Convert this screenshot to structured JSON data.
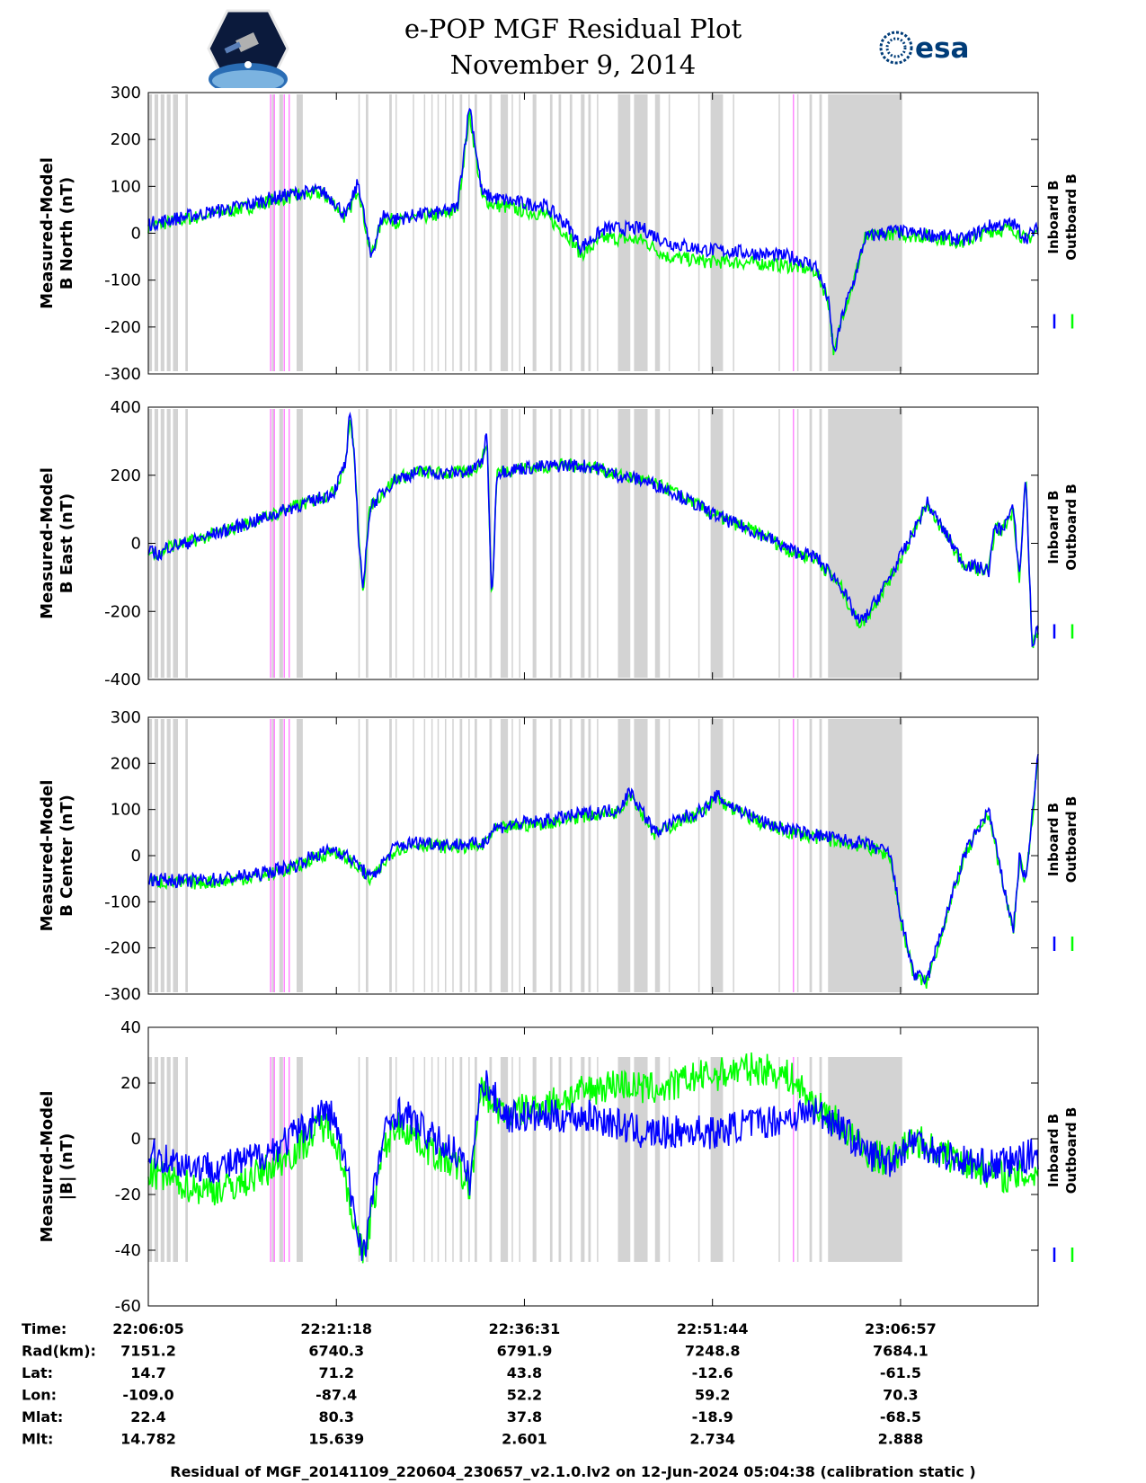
{
  "header": {
    "title_line1": "e-POP MGF Residual Plot",
    "title_line2": "November 9, 2014",
    "left_logo": "cassiope-mission-patch",
    "right_logo_text": "esa"
  },
  "colors": {
    "inboard": "#0000ff",
    "outboard": "#00ff00",
    "gap_shading": "#d3d3d3",
    "magenta_marker": "#ff88ff"
  },
  "legend": {
    "inboard": "Inboard B",
    "outboard": "Outboard B"
  },
  "chart_data": [
    {
      "type": "line",
      "ylabel": [
        "Measured-Model",
        "B North (nT)"
      ],
      "ylim": [
        -300,
        300
      ],
      "yticks": [
        -300,
        -200,
        -100,
        0,
        100,
        200,
        300
      ],
      "x_minutes": [
        0,
        2,
        5,
        8,
        10,
        12,
        14,
        15,
        16,
        17,
        18,
        19,
        20,
        22,
        24,
        25,
        26,
        27,
        28,
        30,
        32,
        34,
        35,
        37,
        40,
        42,
        45,
        48,
        50,
        52,
        54,
        55,
        55.5,
        56.2,
        57,
        58,
        60,
        62,
        64,
        66,
        68,
        70,
        71,
        72
      ],
      "series": [
        {
          "name": "Inboard B",
          "values": [
            20,
            30,
            45,
            60,
            75,
            85,
            90,
            70,
            35,
            110,
            -50,
            40,
            30,
            40,
            45,
            55,
            275,
            85,
            75,
            65,
            60,
            15,
            -30,
            10,
            10,
            -20,
            -35,
            -40,
            -45,
            -50,
            -70,
            -140,
            -260,
            -170,
            -110,
            -10,
            5,
            0,
            -5,
            -15,
            15,
            20,
            -10,
            10
          ]
        },
        {
          "name": "Outboard B",
          "values": [
            15,
            25,
            40,
            55,
            70,
            80,
            85,
            65,
            30,
            100,
            -50,
            35,
            25,
            35,
            40,
            50,
            255,
            75,
            60,
            50,
            40,
            -5,
            -45,
            -10,
            -15,
            -50,
            -60,
            -62,
            -65,
            -70,
            -80,
            -140,
            -260,
            -170,
            -110,
            -10,
            0,
            -5,
            -10,
            -20,
            5,
            10,
            -15,
            5
          ]
        }
      ]
    },
    {
      "type": "line",
      "ylabel": [
        "Measured-Model",
        "B East (nT)"
      ],
      "ylim": [
        -400,
        400
      ],
      "yticks": [
        -400,
        -200,
        0,
        200,
        400
      ],
      "x_minutes": [
        0,
        0.5,
        1,
        1.5,
        3,
        6,
        9,
        12,
        13,
        15,
        16,
        16.3,
        16.7,
        17,
        17.4,
        17.8,
        18,
        20,
        22,
        24,
        26,
        27,
        27.4,
        27.8,
        28.2,
        30,
        32,
        34,
        36,
        38,
        40,
        42,
        44,
        46,
        48,
        50,
        52,
        54,
        56,
        57,
        57.5,
        58,
        60,
        62,
        63,
        64,
        65,
        66,
        68,
        68.5,
        69,
        70,
        70.5,
        71,
        71.5,
        72
      ],
      "series": [
        {
          "name": "Inboard B",
          "values": [
            -30,
            -25,
            -35,
            -10,
            0,
            35,
            70,
            110,
            120,
            150,
            240,
            380,
            250,
            20,
            -140,
            60,
            110,
            190,
            210,
            205,
            210,
            240,
            320,
            -180,
            210,
            220,
            225,
            230,
            225,
            200,
            185,
            160,
            120,
            80,
            50,
            20,
            -20,
            -40,
            -120,
            -200,
            -230,
            -220,
            -100,
            40,
            120,
            60,
            0,
            -60,
            -80,
            50,
            40,
            100,
            -100,
            210,
            -300,
            -250
          ]
        },
        {
          "name": "Outboard B",
          "values": [
            -30,
            -25,
            -35,
            -10,
            0,
            35,
            70,
            110,
            120,
            150,
            240,
            370,
            250,
            20,
            -140,
            60,
            110,
            190,
            210,
            205,
            210,
            240,
            310,
            -180,
            210,
            220,
            225,
            230,
            225,
            200,
            185,
            160,
            120,
            80,
            50,
            20,
            -25,
            -45,
            -125,
            -205,
            -235,
            -225,
            -105,
            35,
            115,
            55,
            -5,
            -65,
            -85,
            45,
            35,
            95,
            -105,
            205,
            -300,
            -255
          ]
        }
      ]
    },
    {
      "type": "line",
      "ylabel": [
        "Measured-Model",
        "B Center (nT)"
      ],
      "ylim": [
        -300,
        300
      ],
      "yticks": [
        -300,
        -200,
        -100,
        0,
        100,
        200,
        300
      ],
      "x_minutes": [
        0,
        3,
        6,
        9,
        12,
        13,
        14,
        15,
        16,
        17,
        18,
        20,
        22,
        24,
        27,
        28,
        30,
        32,
        35,
        38,
        39,
        40,
        41,
        43,
        45,
        46,
        47,
        50,
        52,
        55,
        58,
        60,
        61,
        62,
        63,
        66,
        68,
        69,
        70,
        70.5,
        71,
        72
      ],
      "series": [
        {
          "name": "Inboard B",
          "values": [
            -50,
            -55,
            -50,
            -40,
            -20,
            -5,
            5,
            15,
            0,
            -20,
            -50,
            20,
            30,
            25,
            25,
            60,
            70,
            75,
            90,
            100,
            140,
            95,
            50,
            80,
            100,
            130,
            110,
            70,
            55,
            40,
            25,
            5,
            -150,
            -260,
            -270,
            0,
            100,
            -40,
            -160,
            0,
            -60,
            220
          ]
        },
        {
          "name": "Outboard B",
          "values": [
            -55,
            -60,
            -55,
            -45,
            -25,
            -10,
            0,
            10,
            -5,
            -25,
            -55,
            15,
            25,
            20,
            20,
            55,
            65,
            70,
            85,
            95,
            135,
            90,
            45,
            75,
            95,
            125,
            105,
            65,
            50,
            35,
            20,
            0,
            -155,
            -265,
            -275,
            -5,
            95,
            -45,
            -165,
            -5,
            -65,
            215
          ]
        }
      ]
    },
    {
      "type": "line",
      "ylabel": [
        "Measured-Model",
        "|B| (nT)"
      ],
      "ylim": [
        -60,
        40
      ],
      "yticks": [
        -60,
        -40,
        -20,
        0,
        20,
        40
      ],
      "x_minutes": [
        0,
        2,
        4,
        6,
        8,
        10,
        12,
        13,
        14,
        15,
        16,
        17,
        17.5,
        18,
        19,
        20,
        21,
        23,
        25,
        26,
        27,
        28,
        29,
        30,
        32,
        34,
        36,
        38,
        40,
        42,
        44,
        46,
        48,
        50,
        52,
        54,
        56,
        58,
        60,
        62,
        64,
        66,
        68,
        70,
        72
      ],
      "series": [
        {
          "name": "Inboard B",
          "values": [
            -5,
            -8,
            -10,
            -10,
            -8,
            -4,
            2,
            5,
            10,
            8,
            -10,
            -35,
            -40,
            -25,
            0,
            10,
            8,
            0,
            -5,
            -15,
            22,
            15,
            8,
            8,
            8,
            8,
            8,
            5,
            2,
            2,
            3,
            2,
            5,
            6,
            8,
            10,
            5,
            -5,
            -8,
            0,
            -5,
            -8,
            -10,
            -8,
            -5
          ]
        },
        {
          "name": "Outboard B",
          "values": [
            -12,
            -15,
            -18,
            -18,
            -15,
            -10,
            -4,
            0,
            5,
            3,
            -15,
            -38,
            -42,
            -28,
            -5,
            5,
            3,
            -5,
            -10,
            -18,
            18,
            12,
            8,
            10,
            12,
            15,
            18,
            20,
            18,
            18,
            22,
            23,
            25,
            25,
            22,
            12,
            5,
            -5,
            -8,
            0,
            -5,
            -8,
            -12,
            -14,
            -12
          ]
        }
      ]
    }
  ],
  "time_axis": {
    "minutes": [
      0,
      15.2167,
      30.4333,
      45.65,
      60.8667
    ],
    "labels": {
      "row_titles": [
        "Time:",
        "Rad(km):",
        "Lat:",
        "Lon:",
        "Mlat:",
        "Mlt:"
      ],
      "rows": [
        [
          "22:06:05",
          "22:21:18",
          "22:36:31",
          "22:51:44",
          "23:06:57"
        ],
        [
          "7151.2",
          "6740.3",
          "6791.9",
          "7248.8",
          "7684.1"
        ],
        [
          "14.7",
          "71.2",
          "43.8",
          "-12.6",
          "-61.5"
        ],
        [
          "-109.0",
          "-87.4",
          "52.2",
          "59.2",
          "70.3"
        ],
        [
          "22.4",
          "80.3",
          "37.8",
          "-18.9",
          "-68.5"
        ],
        [
          "14.782",
          "15.639",
          "2.601",
          "2.734",
          "2.888"
        ]
      ]
    }
  },
  "gap_regions_minutes": [
    [
      0,
      0.3
    ],
    [
      0.5,
      0.8
    ],
    [
      1.0,
      1.3
    ],
    [
      1.5,
      1.8
    ],
    [
      2.0,
      2.4
    ],
    [
      3.0,
      3.2
    ],
    [
      10.0,
      10.2
    ],
    [
      10.6,
      10.9
    ],
    [
      12.0,
      12.5
    ],
    [
      17.0,
      17.1
    ],
    [
      17.6,
      17.8
    ],
    [
      19.5,
      19.7
    ],
    [
      20.0,
      20.1
    ],
    [
      21.4,
      21.5
    ],
    [
      22.3,
      22.4
    ],
    [
      22.9,
      23.0
    ],
    [
      23.4,
      23.5
    ],
    [
      24.0,
      24.1
    ],
    [
      24.6,
      24.7
    ],
    [
      25.2,
      25.4
    ],
    [
      25.9,
      26.0
    ],
    [
      26.4,
      26.6
    ],
    [
      27.6,
      27.8
    ],
    [
      28.5,
      29.1
    ],
    [
      29.4,
      29.5
    ],
    [
      30.0,
      30.1
    ],
    [
      31.1,
      31.4
    ],
    [
      32.5,
      32.7
    ],
    [
      33.2,
      33.4
    ],
    [
      34.1,
      34.3
    ],
    [
      35.0,
      35.3
    ],
    [
      35.6,
      35.8
    ],
    [
      36.3,
      36.4
    ],
    [
      38.0,
      39.0
    ],
    [
      39.3,
      40.4
    ],
    [
      41.0,
      41.4
    ],
    [
      42.1,
      42.2
    ],
    [
      44.5,
      44.6
    ],
    [
      45.5,
      46.5
    ],
    [
      47.3,
      47.4
    ],
    [
      51.0,
      51.1
    ],
    [
      52.5,
      52.6
    ],
    [
      53.5,
      53.7
    ],
    [
      54.3,
      54.5
    ],
    [
      55.0,
      61.0
    ]
  ],
  "magenta_markers_minutes": [
    9.9,
    10.2,
    11.0,
    11.4,
    52.2
  ],
  "footer": "Residual of MGF_20141109_220604_230657_v2.1.0.lv2 on 12-Jun-2024 05:04:38 (calibration static )"
}
